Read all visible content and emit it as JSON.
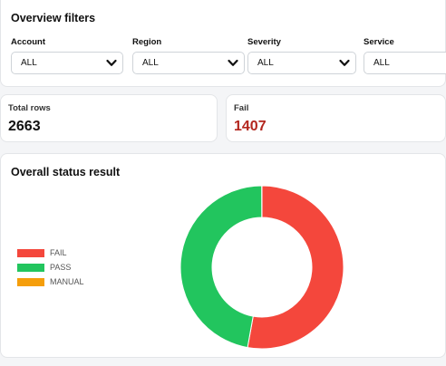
{
  "filters": {
    "title": "Overview filters",
    "items": [
      {
        "label": "Account",
        "value": "ALL"
      },
      {
        "label": "Region",
        "value": "ALL"
      },
      {
        "label": "Severity",
        "value": "ALL"
      },
      {
        "label": "Service",
        "value": "ALL"
      }
    ]
  },
  "stats": {
    "total": {
      "label": "Total rows",
      "value": "2663"
    },
    "fail": {
      "label": "Fail",
      "value": "1407",
      "color": "#b3261e"
    }
  },
  "chart_data": {
    "type": "pie",
    "title": "Overall status result",
    "donut": true,
    "legend_position": "left",
    "categories": [
      "FAIL",
      "PASS",
      "MANUAL"
    ],
    "values": [
      1407,
      1255,
      1
    ],
    "colors": [
      "#f4473c",
      "#22c55e",
      "#f59e0b"
    ]
  }
}
